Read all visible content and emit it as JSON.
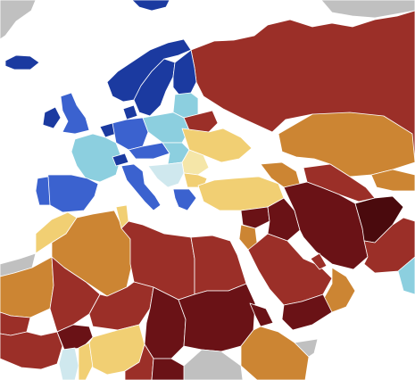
{
  "map": {
    "legend": [],
    "colors": {
      "very_dark_red": "#4a0a0d",
      "dark_red": "#6a1216",
      "red": "#9b2f28",
      "orange": "#cc8533",
      "yellow": "#f1cf73",
      "pale_yellow": "#f5e6a8",
      "light_cyan": "#cfe8ee",
      "cyan": "#8ccfdf",
      "blue": "#3b62cf",
      "dark_blue": "#1b3aa0",
      "gray": "#c0c0c0",
      "sea": "#ffffff"
    },
    "regions": [
      {
        "name": "arctic-islands-land",
        "class": "gray"
      },
      {
        "name": "greenland-svalbard-islands",
        "class": "dark_blue"
      },
      {
        "name": "iceland",
        "class": "dark_blue"
      },
      {
        "name": "ireland",
        "class": "dark_blue"
      },
      {
        "name": "great-britain",
        "class": "blue"
      },
      {
        "name": "norway",
        "class": "dark_blue"
      },
      {
        "name": "sweden",
        "class": "dark_blue"
      },
      {
        "name": "finland",
        "class": "dark_blue"
      },
      {
        "name": "denmark",
        "class": "dark_blue"
      },
      {
        "name": "baltic-states",
        "class": "cyan"
      },
      {
        "name": "belarus",
        "class": "red"
      },
      {
        "name": "russia",
        "class": "red"
      },
      {
        "name": "france",
        "class": "cyan"
      },
      {
        "name": "benelux",
        "class": "dark_blue"
      },
      {
        "name": "germany",
        "class": "blue"
      },
      {
        "name": "poland",
        "class": "cyan"
      },
      {
        "name": "czech-austria",
        "class": "blue"
      },
      {
        "name": "switzerland",
        "class": "dark_blue"
      },
      {
        "name": "hungary-slovakia",
        "class": "cyan"
      },
      {
        "name": "ukraine",
        "class": "yellow"
      },
      {
        "name": "romania-moldova",
        "class": "pale_yellow"
      },
      {
        "name": "balkans",
        "class": "light_cyan"
      },
      {
        "name": "bulgaria",
        "class": "yellow"
      },
      {
        "name": "greece",
        "class": "blue"
      },
      {
        "name": "italy",
        "class": "blue"
      },
      {
        "name": "spain",
        "class": "blue"
      },
      {
        "name": "portugal",
        "class": "blue"
      },
      {
        "name": "turkey",
        "class": "yellow"
      },
      {
        "name": "caucasus",
        "class": "orange"
      },
      {
        "name": "kazakhstan",
        "class": "orange"
      },
      {
        "name": "uzbekistan-turkmenistan",
        "class": "red"
      },
      {
        "name": "tajik-kyrgyz",
        "class": "orange"
      },
      {
        "name": "iran",
        "class": "dark_red"
      },
      {
        "name": "iraq",
        "class": "dark_red"
      },
      {
        "name": "syria",
        "class": "dark_red"
      },
      {
        "name": "jordan-levant",
        "class": "orange"
      },
      {
        "name": "saudi-arabia",
        "class": "red"
      },
      {
        "name": "yemen",
        "class": "dark_red"
      },
      {
        "name": "oman",
        "class": "orange"
      },
      {
        "name": "gulf-states",
        "class": "red"
      },
      {
        "name": "afghanistan",
        "class": "very_dark_red"
      },
      {
        "name": "pakistan",
        "class": "red"
      },
      {
        "name": "india-edge",
        "class": "cyan"
      },
      {
        "name": "morocco",
        "class": "yellow"
      },
      {
        "name": "algeria",
        "class": "orange"
      },
      {
        "name": "tunisia",
        "class": "yellow"
      },
      {
        "name": "libya",
        "class": "red"
      },
      {
        "name": "egypt",
        "class": "red"
      },
      {
        "name": "western-sahara",
        "class": "gray"
      },
      {
        "name": "mauritania",
        "class": "orange"
      },
      {
        "name": "mali",
        "class": "red"
      },
      {
        "name": "niger",
        "class": "red"
      },
      {
        "name": "chad",
        "class": "dark_red"
      },
      {
        "name": "sudan",
        "class": "dark_red"
      },
      {
        "name": "eritrea",
        "class": "dark_red"
      },
      {
        "name": "ethiopia",
        "class": "orange"
      },
      {
        "name": "djibouti-somalia-land",
        "class": "gray"
      },
      {
        "name": "senegal-gambia",
        "class": "red"
      },
      {
        "name": "west-africa-coast",
        "class": "red"
      },
      {
        "name": "burkina-faso",
        "class": "dark_red"
      },
      {
        "name": "ghana",
        "class": "light_cyan"
      },
      {
        "name": "benin-togo",
        "class": "yellow"
      },
      {
        "name": "nigeria",
        "class": "yellow"
      },
      {
        "name": "cameroon",
        "class": "red"
      },
      {
        "name": "central-african-republic",
        "class": "dark_red"
      },
      {
        "name": "south-sudan-land",
        "class": "gray"
      }
    ]
  }
}
